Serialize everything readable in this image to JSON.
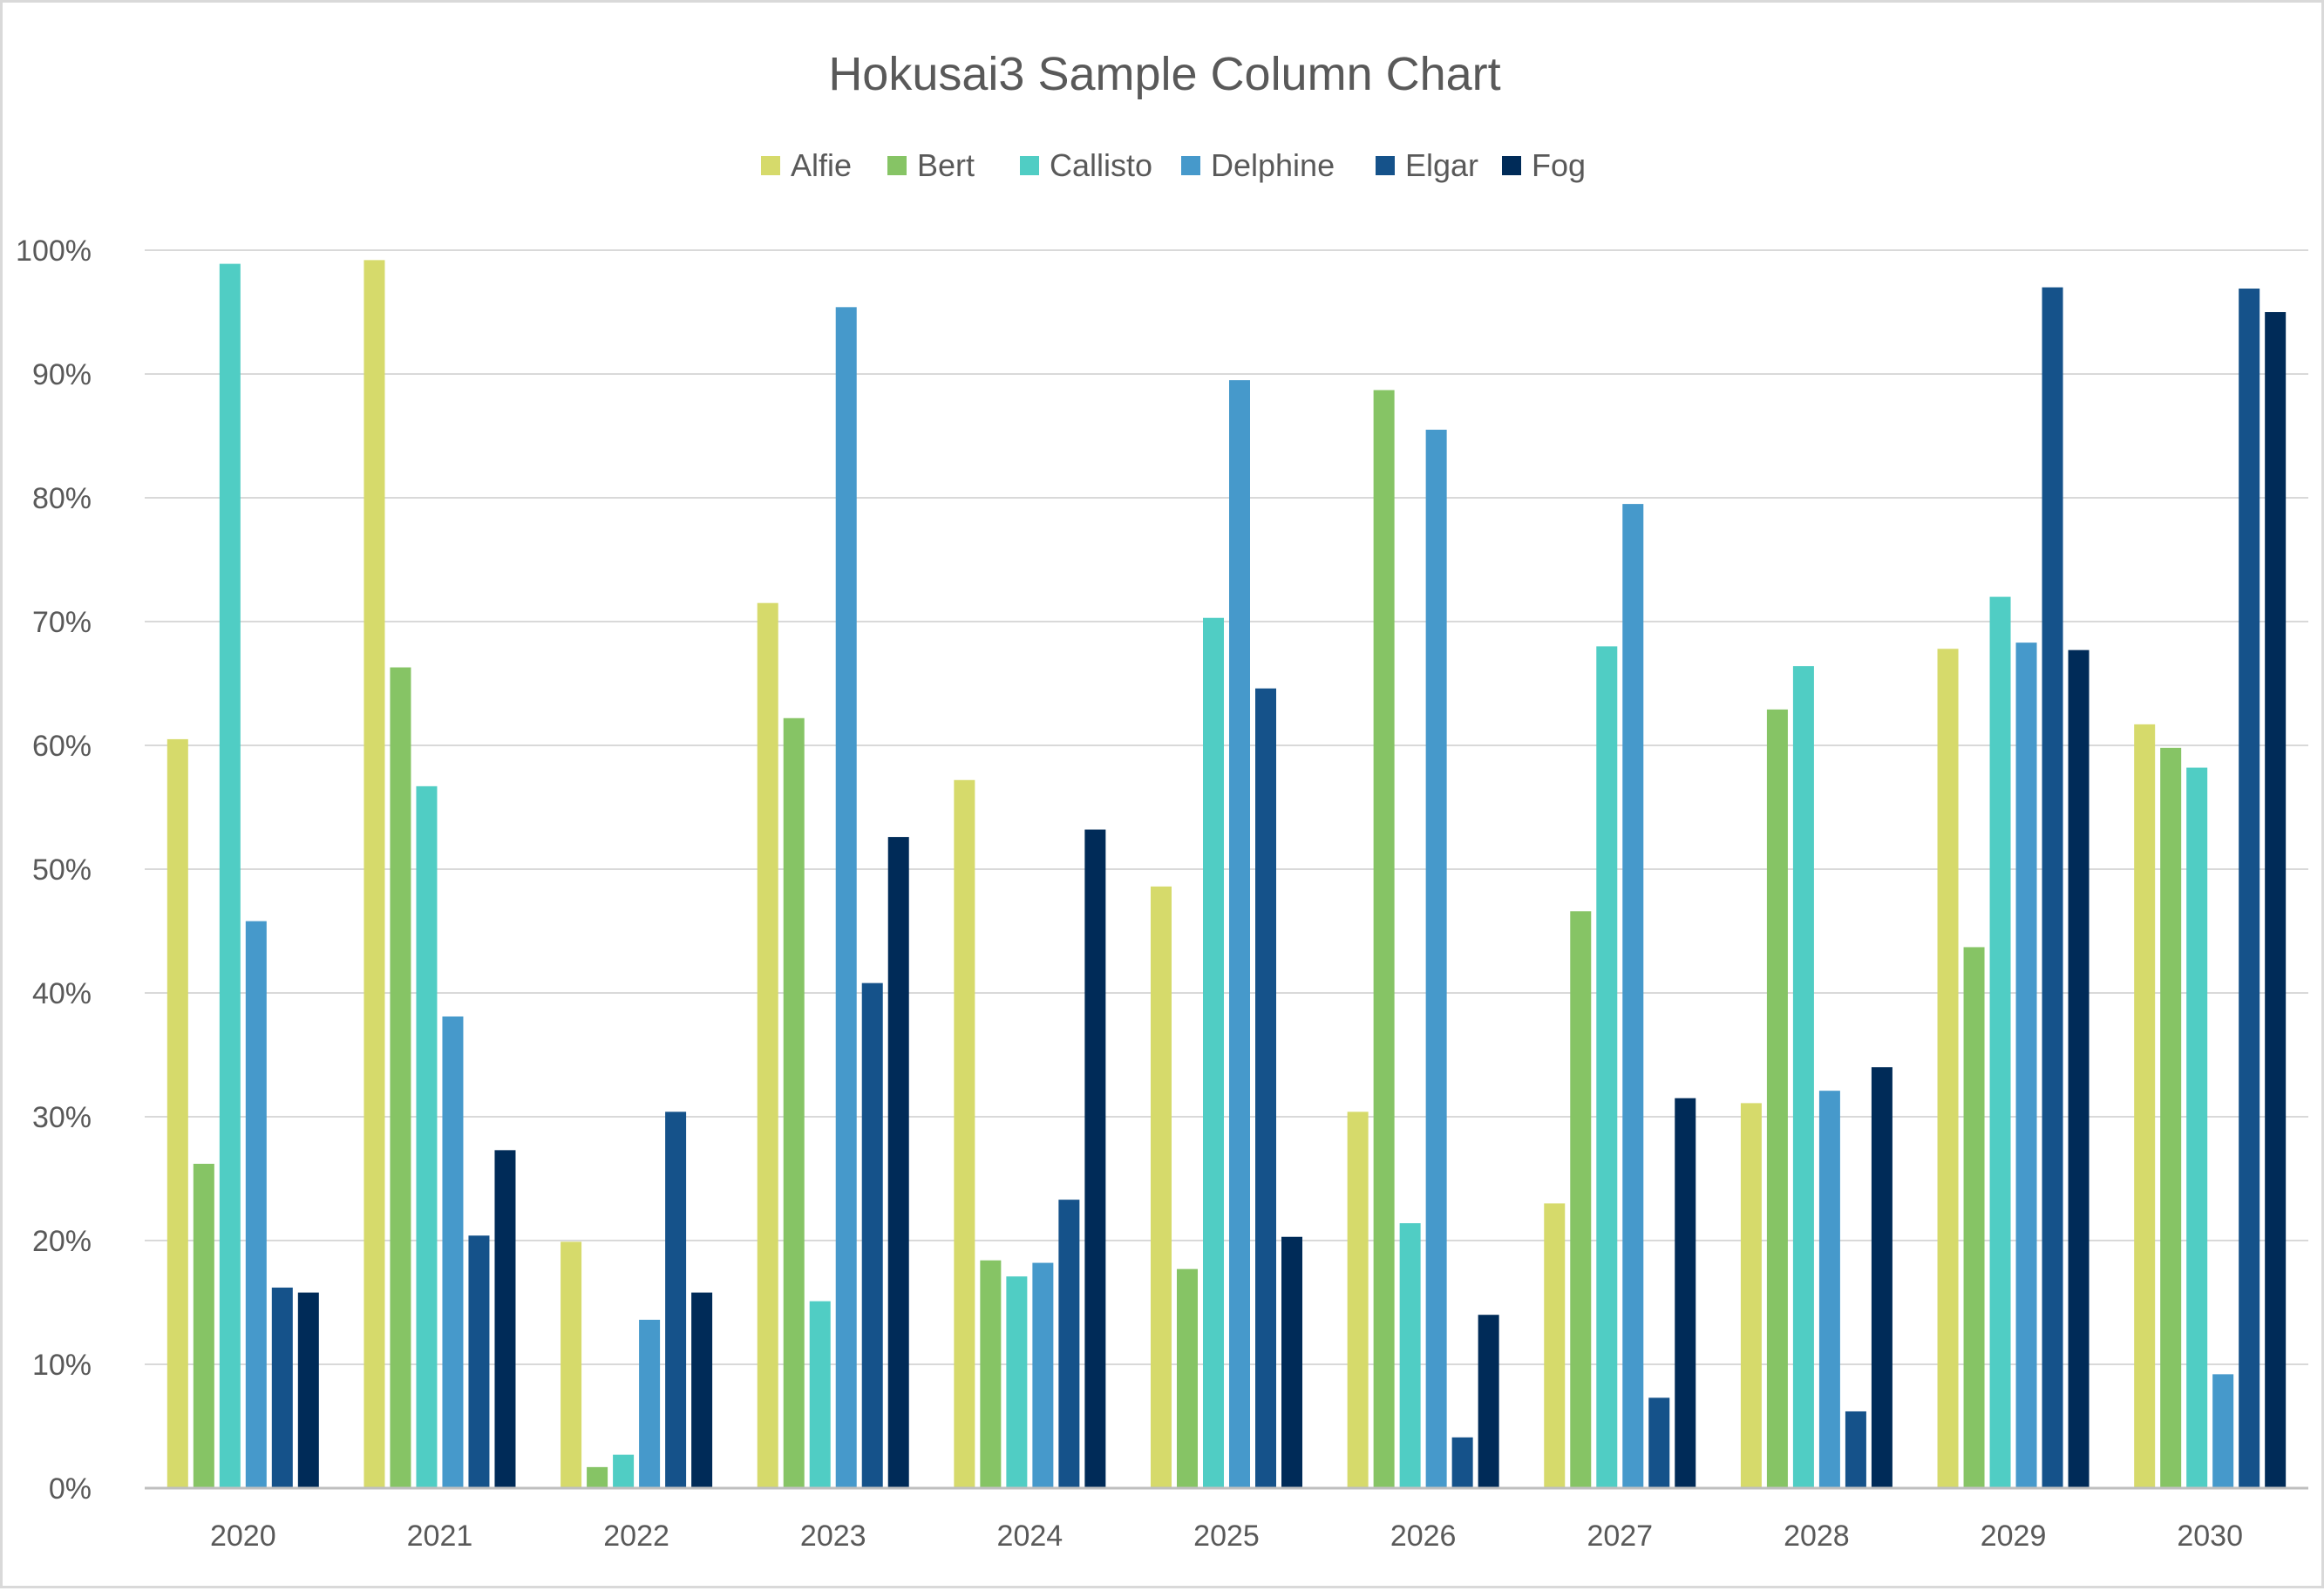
{
  "chart_data": {
    "type": "bar",
    "title": "Hokusai3 Sample Column Chart",
    "xlabel": "",
    "ylabel": "",
    "ylim": [
      0,
      100
    ],
    "y_ticks": [
      "0%",
      "10%",
      "20%",
      "30%",
      "40%",
      "50%",
      "60%",
      "70%",
      "80%",
      "90%",
      "100%"
    ],
    "grid": true,
    "legend_position": "top",
    "categories": [
      "2020",
      "2021",
      "2022",
      "2023",
      "2024",
      "2025",
      "2026",
      "2027",
      "2028",
      "2029",
      "2030"
    ],
    "series": [
      {
        "name": "Alfie",
        "color": "#d6da6b",
        "values": [
          60.5,
          99.2,
          19.9,
          71.5,
          57.2,
          48.6,
          30.4,
          23.0,
          31.1,
          67.8,
          61.7
        ]
      },
      {
        "name": "Bert",
        "color": "#86c465",
        "values": [
          26.2,
          66.3,
          1.7,
          62.2,
          18.4,
          17.7,
          88.7,
          46.6,
          62.9,
          43.7,
          59.8
        ]
      },
      {
        "name": "Callisto",
        "color": "#50cdc4",
        "values": [
          98.9,
          56.7,
          2.7,
          15.1,
          17.1,
          70.3,
          21.4,
          68.0,
          66.4,
          72.0,
          58.2
        ]
      },
      {
        "name": "Delphine",
        "color": "#4699cb",
        "values": [
          45.8,
          38.1,
          13.6,
          95.4,
          18.2,
          89.5,
          85.5,
          79.5,
          32.1,
          68.3,
          9.2
        ]
      },
      {
        "name": "Elgar",
        "color": "#15528a",
        "values": [
          16.2,
          20.4,
          30.4,
          40.8,
          23.3,
          64.6,
          4.1,
          7.3,
          6.2,
          97.0,
          96.9
        ]
      },
      {
        "name": "Fog",
        "color": "#002b58",
        "values": [
          15.8,
          27.3,
          15.8,
          52.6,
          53.2,
          20.3,
          14.0,
          31.5,
          34.0,
          67.7,
          95.0
        ]
      }
    ]
  }
}
